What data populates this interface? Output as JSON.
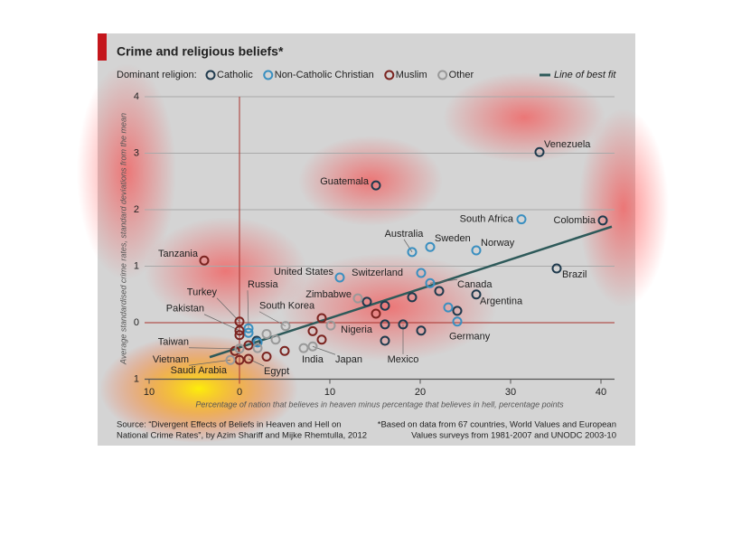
{
  "chart_data": {
    "type": "scatter",
    "title": "Crime and religious beliefs*",
    "legend_title": "Dominant religion:",
    "x_label": "Percentage of nation that believes in heaven minus percentage that believes in hell, percentage points",
    "y_label": "Average standardised crime rates, standard deviations from the mean",
    "source": [
      "Source: “Divergent Effects of Beliefs in Heaven and Hell on",
      "National Crime Rates”, by Azim Shariff and Mijke Rhemtulla, 2012"
    ],
    "footnote": [
      "*Based on data from 67 countries, World Values and European",
      "Values surveys from 1981-2007 and UNODC 2003-10"
    ],
    "xlim": [
      -11.5,
      41.5
    ],
    "ylim": [
      -1,
      4
    ],
    "xticks": [
      {
        "value": -10,
        "label": "10"
      },
      0,
      10,
      20,
      30,
      40
    ],
    "yticks": [
      {
        "value": -1,
        "label": "1"
      },
      0,
      1,
      2,
      3,
      4
    ],
    "grid": true,
    "series": [
      {
        "name": "Catholic",
        "color": "#1f3a4d",
        "x": [
          33.2,
          15.1,
          40.2,
          35.1,
          22.1,
          26.2,
          14.1,
          16.1,
          19.1,
          24.1,
          18.1,
          16.1,
          20.1,
          16.1,
          1.9
        ],
        "y": [
          3.02,
          2.43,
          1.81,
          0.96,
          0.56,
          0.5,
          0.37,
          0.3,
          0.45,
          0.21,
          -0.03,
          -0.03,
          -0.14,
          -0.32,
          -0.32
        ],
        "labels": [
          "Venezuela",
          "Guatemala",
          "Colombia",
          "Brazil",
          null,
          "Argentina",
          null,
          null,
          null,
          null,
          "Mexico",
          null,
          null,
          null,
          null
        ]
      },
      {
        "name": "Non-Catholic Christian",
        "color": "#3a8fc0",
        "x": [
          31.2,
          19.1,
          21.1,
          26.2,
          11.1,
          20.1,
          21.1,
          23.1,
          24.1,
          1.0,
          1.0,
          2.0
        ],
        "y": [
          1.83,
          1.25,
          1.34,
          1.28,
          0.8,
          0.88,
          0.7,
          0.27,
          0.02,
          -0.1,
          -0.18,
          -0.35
        ],
        "labels": [
          "South Africa",
          "Australia",
          "Sweden",
          "Norway",
          "United States",
          "Switzerland",
          "Canada",
          null,
          "Germany",
          "Russia",
          null,
          null
        ]
      },
      {
        "name": "Muslim",
        "color": "#7b2420",
        "x": [
          -3.9,
          15.1,
          0,
          0,
          0,
          0,
          1.0,
          1.0,
          9.1,
          8.1,
          9.1,
          5.0,
          3.0,
          -0.5
        ],
        "y": [
          1.1,
          0.16,
          0.02,
          -0.14,
          -0.22,
          -0.66,
          -0.64,
          -0.4,
          0.08,
          -0.15,
          -0.3,
          -0.5,
          -0.6,
          -0.5
        ],
        "labels": [
          "Tanzania",
          "Nigeria",
          "Turkey",
          "Pakistan",
          null,
          "Saudi Arabia",
          "Egypt",
          null,
          null,
          null,
          null,
          null,
          null,
          null
        ]
      },
      {
        "name": "Other",
        "color": "#999999",
        "x": [
          13.1,
          5.1,
          0,
          -1,
          7.1,
          8.1,
          10.1,
          3.0,
          2.0,
          4.0
        ],
        "y": [
          0.43,
          -0.06,
          -0.46,
          -0.66,
          -0.45,
          -0.42,
          -0.05,
          -0.2,
          -0.45,
          -0.3
        ],
        "labels": [
          "Zimbabwe",
          "South Korea",
          "Taiwan",
          "Vietnam",
          "India",
          "Japan",
          null,
          null,
          null,
          null
        ]
      }
    ],
    "fit": {
      "name": "Line of best fit",
      "color": "#2e5a5a",
      "x": [
        -3.3,
        41.2
      ],
      "y": [
        -0.61,
        1.7
      ]
    }
  }
}
